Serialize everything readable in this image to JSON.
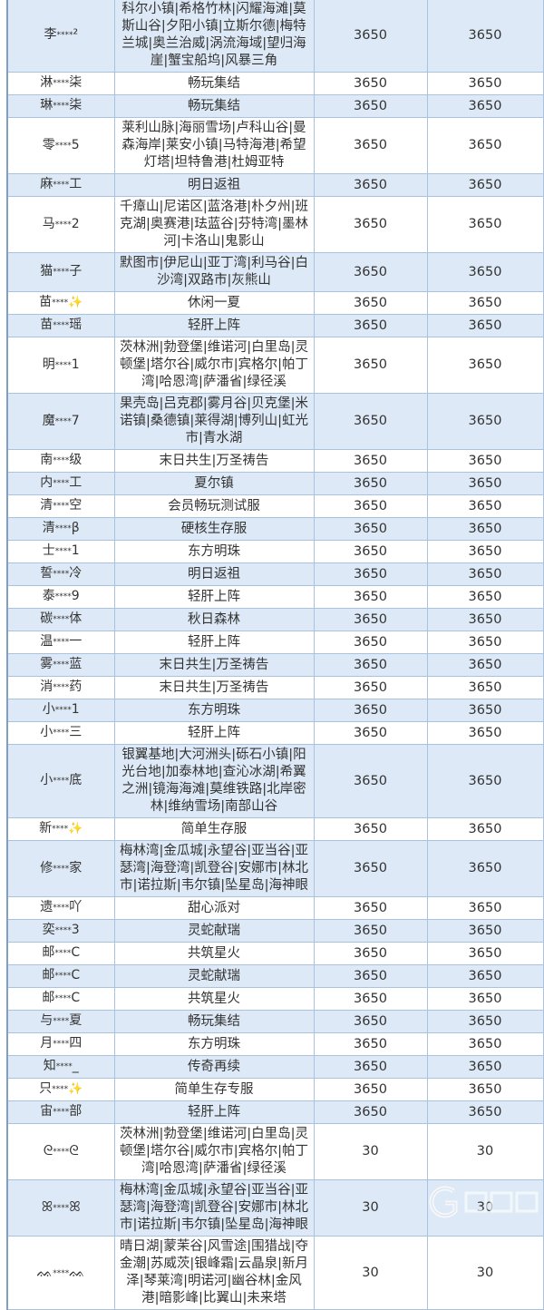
{
  "rows": [
    {
      "prefix": "李",
      "suffix": "²",
      "servers": "科尔小镇|希格竹林|闪耀海滩|莫斯山谷|夕阳小镇|立斯尔德|梅特兰城|奥兰治威|涡流海域|望归海崖|蟹宝船坞|风暴三角",
      "a": "3650",
      "b": "3650"
    },
    {
      "prefix": "淋",
      "suffix": "柒",
      "servers": "畅玩集结",
      "a": "3650",
      "b": "3650"
    },
    {
      "prefix": "琳",
      "suffix": "柒",
      "servers": "畅玩集结",
      "a": "3650",
      "b": "3650"
    },
    {
      "prefix": "零",
      "suffix": "5",
      "servers": "莱利山脉|海丽雪场|卢科山谷|曼森海岸|莱安小镇|马特海港|希望灯塔|坦特鲁港|杜姆亚特",
      "a": "3650",
      "b": "3650"
    },
    {
      "prefix": "麻",
      "suffix": "工",
      "servers": "明日返祖",
      "a": "3650",
      "b": "3650"
    },
    {
      "prefix": "马",
      "suffix": "2",
      "servers": "千瘴山|尼诺区|蓝洛港|朴夕州|班克湖|奥赛港|珐蓝谷|芬特湾|墨林河|卡洛山|鬼影山",
      "a": "3650",
      "b": "3650"
    },
    {
      "prefix": "猫",
      "suffix": "子",
      "servers": "默图市|伊尼山|亚丁湾|利马谷|白沙湾|双路市|灰熊山",
      "a": "3650",
      "b": "3650"
    },
    {
      "prefix": "苗",
      "suffix": "✨",
      "servers": "休闲一夏",
      "a": "3650",
      "b": "3650"
    },
    {
      "prefix": "苗",
      "suffix": "瑶",
      "servers": "轻肝上阵",
      "a": "3650",
      "b": "3650"
    },
    {
      "prefix": "明",
      "suffix": "1",
      "servers": "茨林洲|勃登堡|维诺河|白里岛|灵顿堡|塔尔谷|威尔市|宾格尔|帕丁湾|哈恩湾|萨潘省|绿径溪",
      "a": "3650",
      "b": "3650"
    },
    {
      "prefix": "魔",
      "suffix": "7",
      "servers": "果壳岛|吕克郡|雾月谷|贝克堡|米诺镇|桑德镇|莱得湖|博列山|虹光市|青水湖",
      "a": "3650",
      "b": "3650"
    },
    {
      "prefix": "南",
      "suffix": "级",
      "servers": "末日共生|万圣祷告",
      "a": "3650",
      "b": "3650"
    },
    {
      "prefix": "内",
      "suffix": "工",
      "servers": "夏尔镇",
      "a": "3650",
      "b": "3650"
    },
    {
      "prefix": "清",
      "suffix": "空",
      "servers": "会员畅玩测试服",
      "a": "3650",
      "b": "3650"
    },
    {
      "prefix": "清",
      "suffix": "β",
      "servers": "硬核生存服",
      "a": "3650",
      "b": "3650"
    },
    {
      "prefix": "士",
      "suffix": "1",
      "servers": "东方明珠",
      "a": "3650",
      "b": "3650"
    },
    {
      "prefix": "誓",
      "suffix": "冷",
      "servers": "明日返祖",
      "a": "3650",
      "b": "3650"
    },
    {
      "prefix": "泰",
      "suffix": "9",
      "servers": "轻肝上阵",
      "a": "3650",
      "b": "3650"
    },
    {
      "prefix": "碳",
      "suffix": "体",
      "servers": "秋日森林",
      "a": "3650",
      "b": "3650"
    },
    {
      "prefix": "温",
      "suffix": "一",
      "servers": "轻肝上阵",
      "a": "3650",
      "b": "3650"
    },
    {
      "prefix": "雾",
      "suffix": "蓝",
      "servers": "末日共生|万圣祷告",
      "a": "3650",
      "b": "3650"
    },
    {
      "prefix": "消",
      "suffix": "药",
      "servers": "末日共生|万圣祷告",
      "a": "3650",
      "b": "3650"
    },
    {
      "prefix": "小",
      "suffix": "1",
      "servers": "东方明珠",
      "a": "3650",
      "b": "3650"
    },
    {
      "prefix": "小",
      "suffix": "三",
      "servers": "轻肝上阵",
      "a": "3650",
      "b": "3650"
    },
    {
      "prefix": "小",
      "suffix": "底",
      "servers": "银翼基地|大河洲头|砾石小镇|阳光台地|加泰林地|查沁冰湖|希翼之洲|镜海海滩|莫维铁路|北岸密林|维纳雪场|南部山谷",
      "a": "3650",
      "b": "3650"
    },
    {
      "prefix": "新",
      "suffix": "✨",
      "servers": "简单生存服",
      "a": "3650",
      "b": "3650"
    },
    {
      "prefix": "修",
      "suffix": "家",
      "servers": "梅林湾|金瓜城|永望谷|亚当谷|亚瑟湾|海登湾|凯登谷|安娜市|林北市|诺拉斯|韦尔镇|坠星岛|海神眼",
      "a": "3650",
      "b": "3650"
    },
    {
      "prefix": "遗",
      "suffix": "吖",
      "servers": "甜心派对",
      "a": "3650",
      "b": "3650"
    },
    {
      "prefix": "奕",
      "suffix": "3",
      "servers": "灵蛇献瑞",
      "a": "3650",
      "b": "3650"
    },
    {
      "prefix": "邮",
      "suffix": "C",
      "servers": "共筑星火",
      "a": "3650",
      "b": "3650"
    },
    {
      "prefix": "邮",
      "suffix": "C",
      "servers": "灵蛇献瑞",
      "a": "3650",
      "b": "3650"
    },
    {
      "prefix": "邮",
      "suffix": "C",
      "servers": "共筑星火",
      "a": "3650",
      "b": "3650"
    },
    {
      "prefix": "与",
      "suffix": "夏",
      "servers": "畅玩集结",
      "a": "3650",
      "b": "3650"
    },
    {
      "prefix": "月",
      "suffix": "四",
      "servers": "东方明珠",
      "a": "3650",
      "b": "3650"
    },
    {
      "prefix": "知",
      "suffix": "_",
      "servers": "传奇再续",
      "a": "3650",
      "b": "3650"
    },
    {
      "prefix": "只",
      "suffix": "✨",
      "servers": "简单生存专服",
      "a": "3650",
      "b": "3650"
    },
    {
      "prefix": "宙",
      "suffix": "部",
      "servers": "轻肝上阵",
      "a": "3650",
      "b": "3650"
    },
    {
      "prefix": "ᘓ",
      "suffix": "ᘓ",
      "servers": "茨林洲|勃登堡|维诺河|白里岛|灵顿堡|塔尔谷|威尔市|宾格尔|帕丁湾|哈恩湾|萨潘省|绿径溪",
      "a": "30",
      "b": "30"
    },
    {
      "prefix": "ꕤ",
      "suffix": "ꕤ",
      "servers": "梅林湾|金瓜城|永望谷|亚当谷|亚瑟湾|海登湾|凯登谷|安娜市|林北市|诺拉斯|韦尔镇|坠星岛|海神眼",
      "a": "30",
      "b": "30"
    },
    {
      "prefix": "ᨐ",
      "suffix": "ᨐ",
      "servers": "晴日湖|蒙茉谷|风雪途|围猎战|夺金潮|苏威茨|银峰霜|云晶泉|新月泽|琴莱湾|明诺河|幽谷林|金风港|暗影峰|比翼山|未来塔",
      "a": "30",
      "b": "30"
    }
  ],
  "mask": "****",
  "colors": {
    "row_alt": "#dde9f6",
    "border": "#a9c3df",
    "sparkle": "#f5c242"
  },
  "watermark_logo": "G 当手游"
}
